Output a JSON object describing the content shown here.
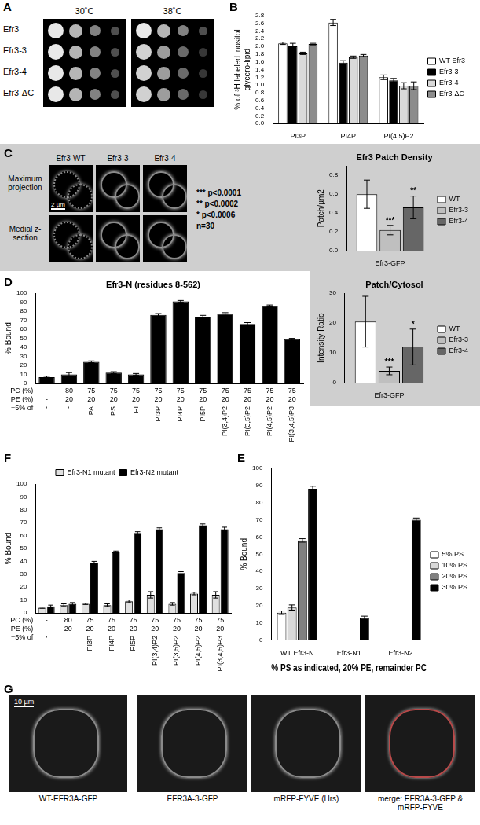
{
  "image_panels": {
    "A": {
      "label": "A",
      "conditions": [
        "30˚C",
        "38˚C"
      ],
      "strains": [
        "Efr3",
        "Efr3-3",
        "Efr3-4",
        "Efr3-ΔC"
      ]
    },
    "C": {
      "label": "C",
      "columns": [
        "Efr3-WT",
        "Efr3-3",
        "Efr3-4"
      ],
      "rows": [
        "Maximum projection",
        "Medial z-section"
      ],
      "scale_bar": "2 µm",
      "stats": [
        "*** p<0.0001",
        "** p<0.0002",
        "* p<0.0006",
        "n=30"
      ]
    },
    "G": {
      "label": "G",
      "images": [
        "WT-EFR3A-GFP",
        "EFR3A-3-GFP",
        "mRFP-FYVE (Hrs)",
        "merge: EFR3A-3-GFP & mRFP-FYVE"
      ],
      "scale_bar": "10 µm"
    }
  },
  "chart_data": [
    {
      "type": "bar",
      "panel": "B",
      "y_label": [
        "% of ³H labeled inositol",
        "glycero-lipid"
      ],
      "categories": [
        "PI3P",
        "PI4P",
        "PI(4,5)P2"
      ],
      "series": [
        {
          "name": "WT-Efr3",
          "color": "#ffffff",
          "values": [
            2.08,
            2.62,
            1.2
          ],
          "errors": [
            0.03,
            0.08,
            0.06
          ]
        },
        {
          "name": "Efr3-3",
          "color": "#000000",
          "values": [
            2.0,
            1.58,
            1.12
          ],
          "errors": [
            0.08,
            0.05,
            0.05
          ]
        },
        {
          "name": "Efr3-4",
          "color": "#d9d9d9",
          "values": [
            1.82,
            1.72,
            0.98
          ],
          "errors": [
            0.03,
            0.03,
            0.08
          ]
        },
        {
          "name": "Efr3-ΔC",
          "color": "#8c8c8c",
          "values": [
            2.06,
            1.76,
            0.98
          ],
          "errors": [
            0.02,
            0.03,
            0.1
          ]
        }
      ],
      "ylim": [
        0,
        2.8
      ],
      "yticks": [
        {
          "value": 0,
          "label": "0.0"
        },
        0.2,
        0.4,
        0.6,
        0.8,
        {
          "value": 1,
          "label": "1.0"
        },
        1.2,
        1.4,
        1.6,
        1.8,
        {
          "value": 2,
          "label": "2.0"
        },
        2.2,
        2.4,
        2.6,
        2.8
      ],
      "grid": false,
      "legend": "right"
    },
    {
      "type": "bar",
      "title": "Efr3 Patch Density",
      "y_label": "Patch/µm2",
      "categories": [
        "Efr3-GFP"
      ],
      "series": [
        {
          "name": "WT",
          "color": "#ffffff",
          "values": [
            0.6
          ],
          "errors": [
            0.15
          ]
        },
        {
          "name": "Efr3-3",
          "color": "#bfbfbf",
          "values": [
            0.22
          ],
          "errors": [
            0.05
          ],
          "significance": "***"
        },
        {
          "name": "Efr3-4",
          "color": "#666666",
          "values": [
            0.46
          ],
          "errors": [
            0.12
          ],
          "significance": "**"
        }
      ],
      "ylim": [
        0,
        0.9
      ],
      "yticks": [
        {
          "value": 0,
          "label": "0.0"
        },
        0.2,
        0.4,
        0.6,
        0.8
      ],
      "grid": false,
      "legend": "right"
    },
    {
      "type": "bar",
      "title": "Patch/Cytosol",
      "y_label": "Intensity Ratio",
      "categories": [
        "Efr3-GFP"
      ],
      "series": [
        {
          "name": "WT",
          "color": "#ffffff",
          "values": [
            20.5
          ],
          "errors": [
            8.5
          ]
        },
        {
          "name": "Efr3-3",
          "color": "#bfbfbf",
          "values": [
            4
          ],
          "errors": [
            1.3
          ],
          "significance": "***"
        },
        {
          "name": "Efr3-4",
          "color": "#666666",
          "values": [
            12
          ],
          "errors": [
            6
          ],
          "significance": "*"
        }
      ],
      "ylim": [
        0,
        30
      ],
      "yticks": [
        0,
        10,
        20,
        30
      ],
      "grid": false,
      "legend": "right"
    },
    {
      "type": "bar",
      "panel": "D",
      "title": "Efr3-N (residues 8-562)",
      "y_label": "% Bound",
      "row_labels": [
        "PC (%)",
        "PE (%)",
        "+5% of"
      ],
      "categories": [
        [
          "-",
          "-",
          "-"
        ],
        [
          "80",
          "20",
          "-"
        ],
        [
          "75",
          "20",
          "PA"
        ],
        [
          "75",
          "20",
          "PS"
        ],
        [
          "75",
          "20",
          "PI"
        ],
        [
          "75",
          "20",
          "PI3P"
        ],
        [
          "75",
          "20",
          "PI4P"
        ],
        [
          "75",
          "20",
          "PI5P"
        ],
        [
          "75",
          "20",
          "PI(3,4)P2"
        ],
        [
          "75",
          "20",
          "PI(3,5)P2"
        ],
        [
          "75",
          "20",
          "PI(4,5)P2"
        ],
        [
          "75",
          "20",
          "PI(3,4,5)P3"
        ]
      ],
      "series": [
        {
          "name": "Efr3-N",
          "color": "#000000",
          "values": [
            7,
            10,
            24,
            12,
            10,
            76,
            91,
            74,
            77,
            66,
            86,
            49
          ],
          "errors": [
            1,
            2,
            1,
            1,
            1,
            1.5,
            1,
            1.5,
            1.5,
            1.5,
            1,
            1
          ]
        }
      ],
      "ylim": [
        0,
        100
      ],
      "yticks": [
        0,
        10,
        20,
        30,
        40,
        50,
        60,
        70,
        80,
        90,
        100
      ],
      "grid": false
    },
    {
      "type": "bar",
      "panel": "E",
      "x_label": "% PS as indicated, 20% PE, remainder PC",
      "y_label": "% Bound",
      "categories": [
        "WT Efr3-N",
        "Efr3-N1",
        "Efr3-N2"
      ],
      "series": [
        {
          "name": "5% PS",
          "color": "#ffffff",
          "values": [
            16,
            null,
            null
          ],
          "errors": [
            1,
            null,
            null
          ]
        },
        {
          "name": "10% PS",
          "color": "#d9d9d9",
          "values": [
            19,
            null,
            null
          ],
          "errors": [
            1.5,
            null,
            null
          ]
        },
        {
          "name": "20% PS",
          "color": "#808080",
          "values": [
            58,
            null,
            null
          ],
          "errors": [
            1,
            null,
            null
          ]
        },
        {
          "name": "30% PS",
          "color": "#000000",
          "values": [
            88,
            13,
            70
          ],
          "errors": [
            1.5,
            1,
            1
          ]
        }
      ],
      "ylim": [
        0,
        100
      ],
      "yticks": [
        0,
        10,
        20,
        30,
        40,
        50,
        60,
        70,
        80,
        90,
        100
      ],
      "grid": false,
      "legend": "right"
    },
    {
      "type": "bar",
      "panel": "F",
      "y_label": "% Bound",
      "row_labels": [
        "PC (%)",
        "PE (%)",
        "+5% of"
      ],
      "categories": [
        [
          "-",
          "-",
          "-"
        ],
        [
          "80",
          "20",
          "-"
        ],
        [
          "75",
          "20",
          "PI3P"
        ],
        [
          "75",
          "20",
          "PI4P"
        ],
        [
          "75",
          "20",
          "PI5P"
        ],
        [
          "75",
          "20",
          "PI(3,4)P2"
        ],
        [
          "75",
          "20",
          "PI(3,5)P2"
        ],
        [
          "75",
          "20",
          "PI(4,5)P2"
        ],
        [
          "75",
          "20",
          "PI(3,4,5)P3"
        ]
      ],
      "series": [
        {
          "name": "Efr3-N1 mutant",
          "color": "#e0e0e0",
          "values": [
            4,
            6,
            7,
            6,
            9,
            14,
            7,
            15,
            14
          ],
          "errors": [
            0.5,
            1,
            0.5,
            1,
            1,
            2.5,
            1,
            1,
            2.5
          ]
        },
        {
          "name": "Efr3-N2 mutant",
          "color": "#000000",
          "values": [
            5,
            7,
            39,
            47,
            62,
            65,
            31,
            68,
            65
          ],
          "errors": [
            1,
            1,
            1,
            1,
            1,
            1,
            1,
            1,
            1.5
          ]
        }
      ],
      "ylim": [
        0,
        100
      ],
      "yticks": [
        0,
        10,
        20,
        30,
        40,
        50,
        60,
        70,
        80,
        90,
        100
      ],
      "grid": false,
      "legend": "top"
    }
  ]
}
